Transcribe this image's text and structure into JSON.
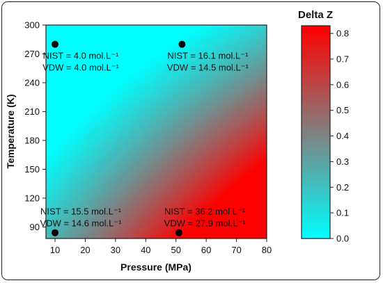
{
  "chart_data": {
    "type": "heatmap",
    "title": "",
    "xlabel": "Pressure (MPa)",
    "ylabel": "Temperature (K)",
    "xlim": [
      7,
      80
    ],
    "ylim": [
      78,
      300
    ],
    "xticks": [
      10,
      20,
      30,
      40,
      50,
      60,
      70,
      80
    ],
    "yticks": [
      90,
      120,
      150,
      180,
      210,
      240,
      270,
      300
    ],
    "colorbar": {
      "title": "Delta Z",
      "range": [
        0.0,
        0.83
      ],
      "ticks": [
        0.0,
        0.1,
        0.2,
        0.3,
        0.4,
        0.5,
        0.6,
        0.7,
        0.8
      ],
      "tick_labels": [
        "0.0",
        "0.1",
        "0.2",
        "0.3",
        "0.4",
        "0.5",
        "0.6",
        "0.7",
        "0.8"
      ],
      "low_color": "#00ffff",
      "high_color": "#ff0000"
    },
    "points": [
      {
        "pressure": 10,
        "temperature": 280,
        "nist_label": "NIST = 4.0 mol.L⁻¹",
        "vdw_label": "VDW = 4.0 mol.L⁻¹"
      },
      {
        "pressure": 52,
        "temperature": 280,
        "nist_label": "NIST = 16.1 mol.L⁻¹",
        "vdw_label": "VDW = 14.5 mol.L⁻¹"
      },
      {
        "pressure": 10,
        "temperature": 84,
        "nist_label": "NIST = 15.5 mol.L⁻¹",
        "vdw_label": "VDW = 14.6 mol.L⁻¹"
      },
      {
        "pressure": 51,
        "temperature": 84,
        "nist_label": "NIST = 36.2 mol.L⁻¹",
        "vdw_label": "VDW = 27.9 mol.L⁻¹"
      }
    ]
  }
}
